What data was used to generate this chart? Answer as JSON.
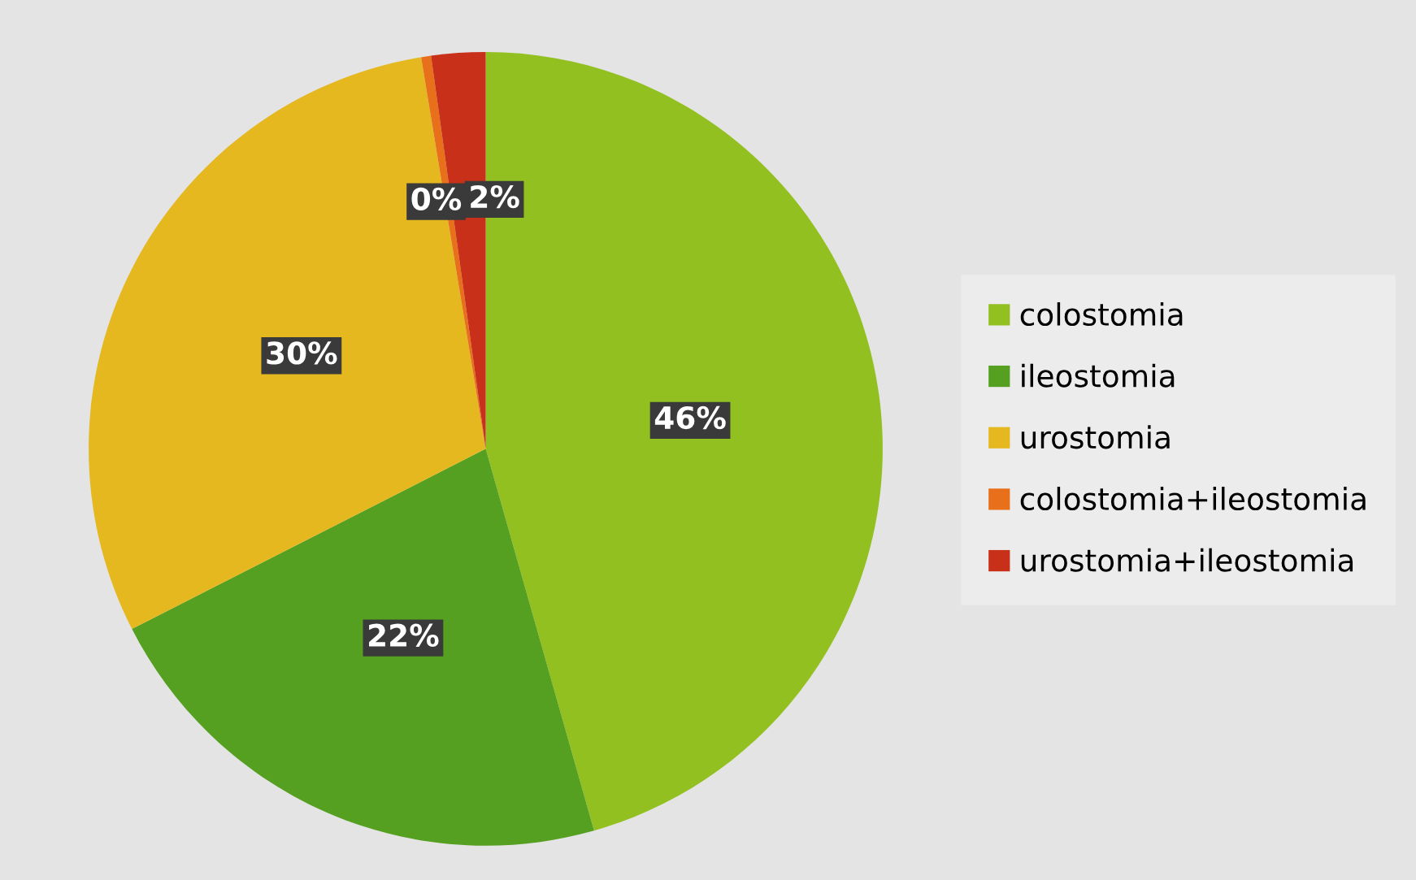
{
  "chart_data": {
    "type": "pie",
    "categories": [
      "colostomia",
      "ileostomia",
      "urostomia",
      "colostomia+ileostomia",
      "urostomia+ileostomia"
    ],
    "values": [
      45.6,
      21.9,
      29.9,
      0.4,
      2.2
    ],
    "colors": [
      "#93c021",
      "#55a020",
      "#e5b820",
      "#e8701a",
      "#c8301a"
    ],
    "value_labels": [
      "46%",
      "22%",
      "30%",
      "0%",
      "2%"
    ],
    "legend": "right"
  }
}
